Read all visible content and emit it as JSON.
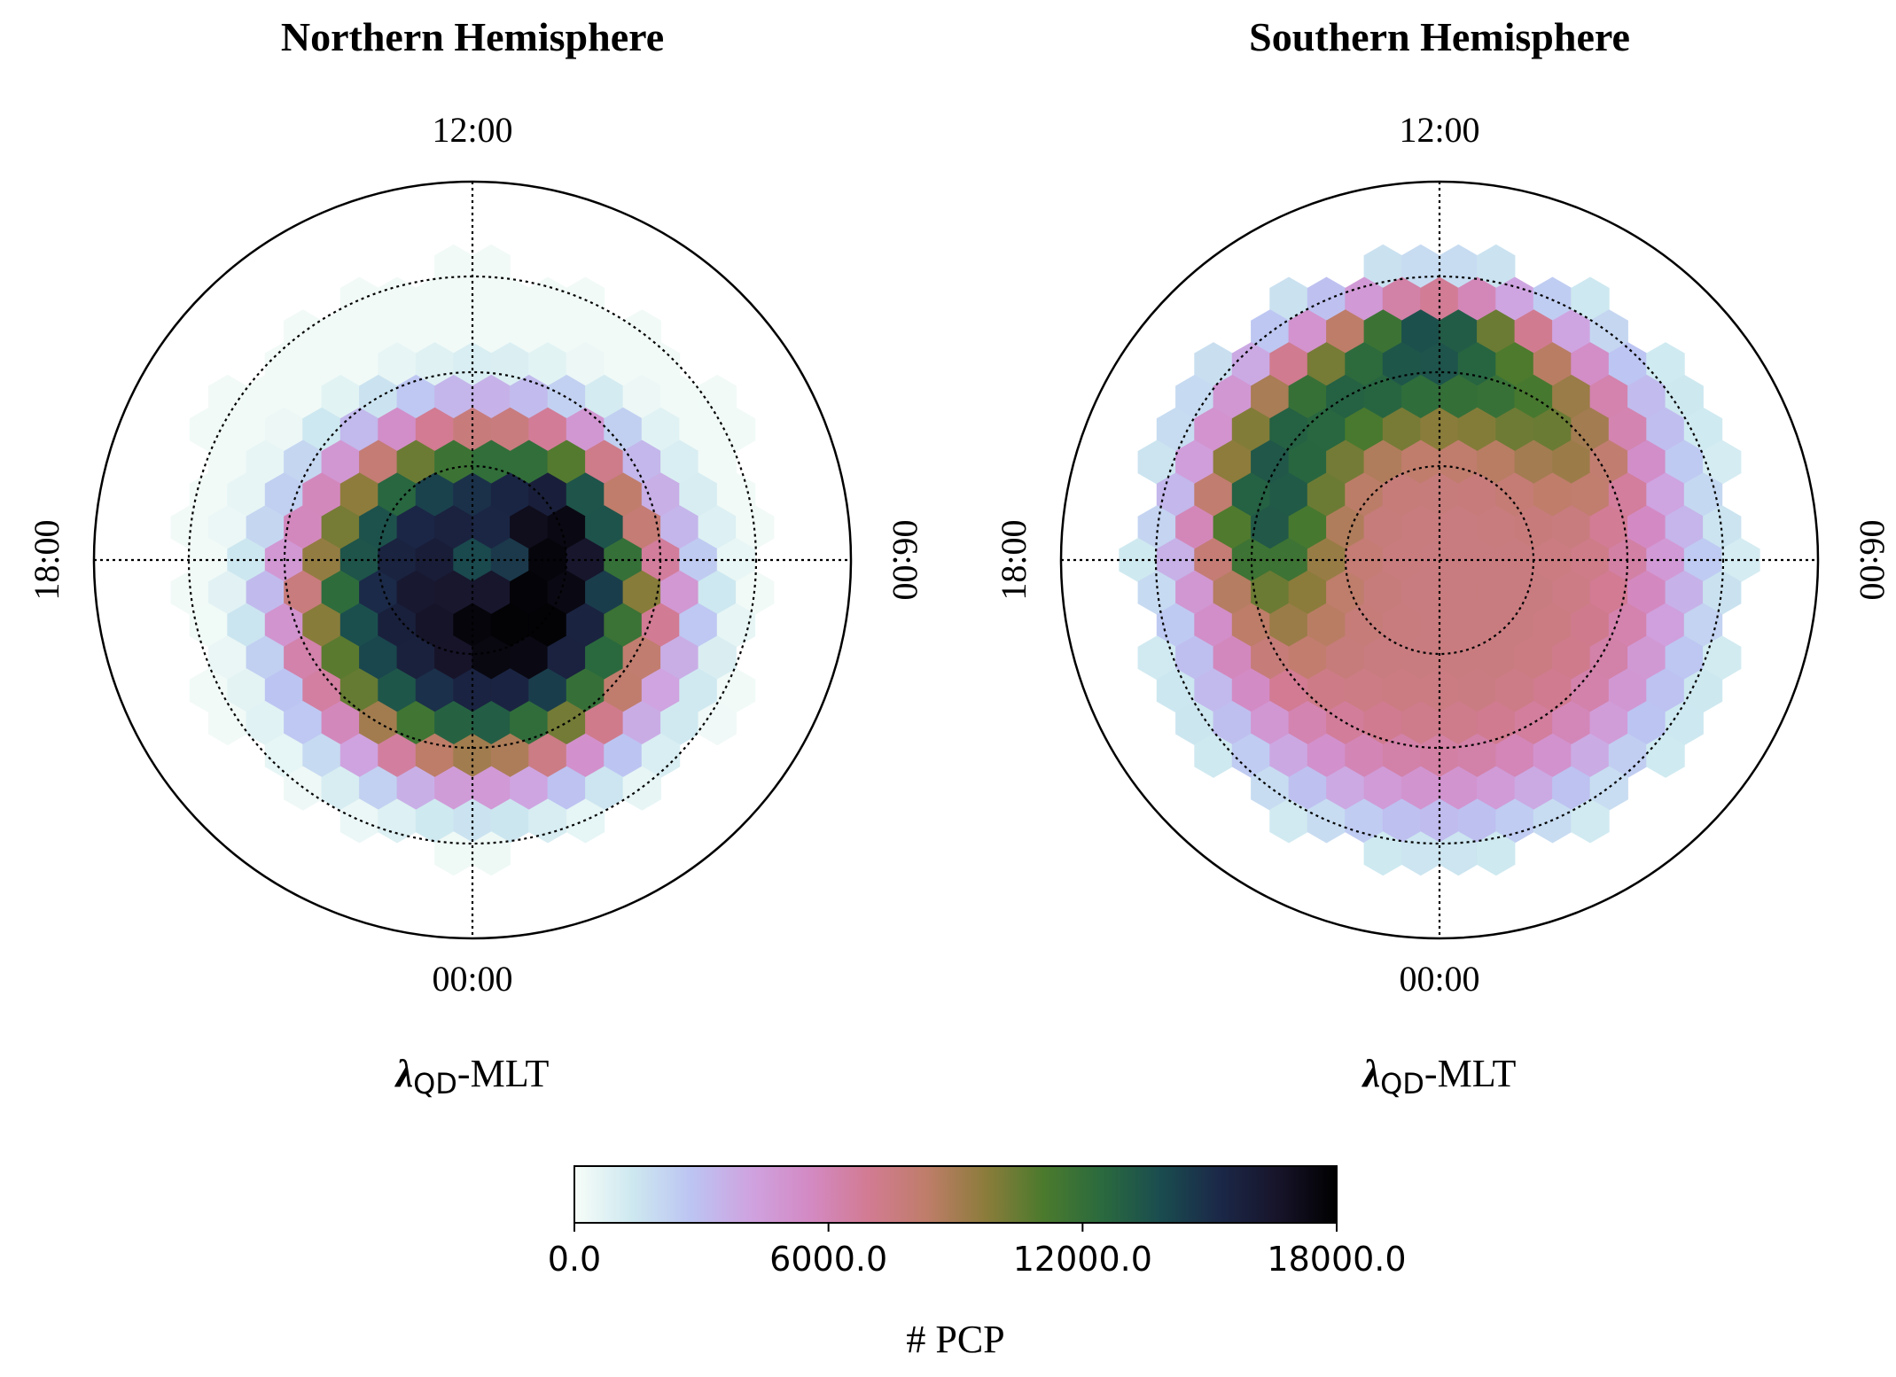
{
  "chart_data": [
    {
      "type": "heatmap",
      "subtype": "polar-hexbin",
      "title": "Northern Hemisphere",
      "xlabel_symbol": "λ",
      "xlabel_sub": "QD",
      "xlabel_rest": "-MLT",
      "mlt_labels": {
        "top": "12:00",
        "bottom": "00:00",
        "left": "18:00",
        "right": "06:00"
      },
      "latitude_circles": 3,
      "hexbins": {
        "description": "counts per hex, dawn-skewed dark core",
        "peak_value": 17500,
        "outer_value": 1500
      }
    },
    {
      "type": "heatmap",
      "subtype": "polar-hexbin",
      "title": "Southern Hemisphere",
      "xlabel_symbol": "λ",
      "xlabel_sub": "QD",
      "xlabel_rest": "-MLT",
      "mlt_labels": {
        "top": "12:00",
        "bottom": "00:00",
        "left": "18:00",
        "right": "06:00"
      },
      "latitude_circles": 3,
      "hexbins": {
        "description": "counts per hex, dayside-dusk dark band",
        "peak_value": 15500,
        "outer_value": 1500
      }
    }
  ],
  "colorbar": {
    "label": "# PCP",
    "min": 0,
    "max": 18000,
    "ticks": [
      "0.0",
      "6000.0",
      "12000.0",
      "18000.0"
    ],
    "tick_values": [
      0,
      6000,
      12000,
      18000
    ],
    "colormap": "cubehelix-like",
    "stops": [
      "#f7fdf8",
      "#cde8f0",
      "#bcc4f2",
      "#cfa3e0",
      "#d38ac4",
      "#d27b93",
      "#bf7d6a",
      "#8c7c3b",
      "#4b7a2d",
      "#2a6a3e",
      "#1a4c4f",
      "#1b2848",
      "#17142a",
      "#000000"
    ]
  }
}
